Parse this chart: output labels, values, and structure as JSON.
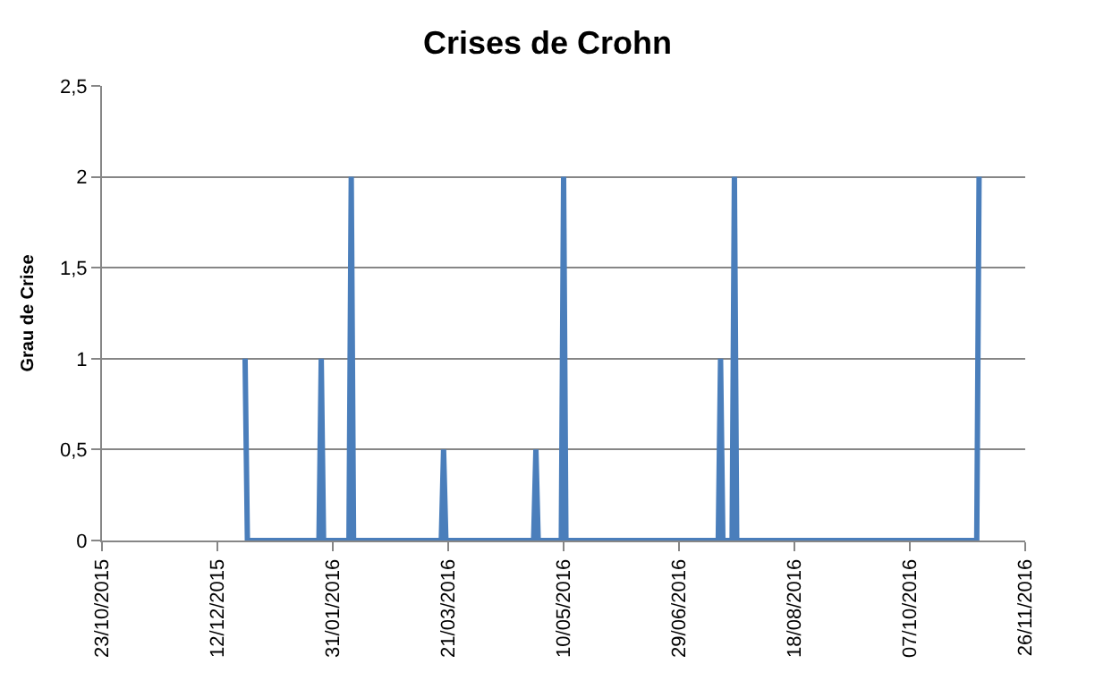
{
  "chart_data": {
    "type": "line",
    "title": "Crises de Crohn",
    "ylabel": "Grau de Crise",
    "x": [
      "2015-12-24",
      "2015-12-25",
      "2016-01-25",
      "2016-01-26",
      "2016-01-27",
      "2016-02-07",
      "2016-02-08",
      "2016-02-09",
      "2016-03-18",
      "2016-03-19",
      "2016-03-20",
      "2016-04-27",
      "2016-04-28",
      "2016-04-29",
      "2016-05-09",
      "2016-05-10",
      "2016-05-11",
      "2016-07-16",
      "2016-07-17",
      "2016-07-18",
      "2016-07-22",
      "2016-07-23",
      "2016-07-24",
      "2016-11-05",
      "2016-11-06"
    ],
    "series": [
      {
        "color": "#4a7ebb",
        "values": [
          1,
          0,
          0,
          1,
          0,
          0,
          2,
          0,
          0,
          0.5,
          0,
          0,
          0.5,
          0,
          0,
          2,
          0,
          0,
          1,
          0,
          0,
          2,
          0,
          0,
          2
        ]
      }
    ],
    "xlim": [
      "2015-10-23",
      "2016-11-26"
    ],
    "xticks": [
      {
        "value": "2015-10-23",
        "label": "23/10/2015"
      },
      {
        "value": "2015-12-12",
        "label": "12/12/2015"
      },
      {
        "value": "2016-01-31",
        "label": "31/01/2016"
      },
      {
        "value": "2016-03-21",
        "label": "21/03/2016"
      },
      {
        "value": "2016-05-10",
        "label": "10/05/2016"
      },
      {
        "value": "2016-06-29",
        "label": "29/06/2016"
      },
      {
        "value": "2016-08-18",
        "label": "18/08/2016"
      },
      {
        "value": "2016-10-07",
        "label": "07/10/2016"
      },
      {
        "value": "2016-11-26",
        "label": "26/11/2016"
      }
    ],
    "ylim": [
      0,
      2.5
    ],
    "yticks": [
      0,
      {
        "value": 0.5,
        "label": "0,5"
      },
      1,
      {
        "value": 1.5,
        "label": "1,5"
      },
      2,
      {
        "value": 2.5,
        "label": "2,5"
      }
    ],
    "grid": "y",
    "legend": false,
    "marker": "none",
    "line_style": "solid"
  }
}
